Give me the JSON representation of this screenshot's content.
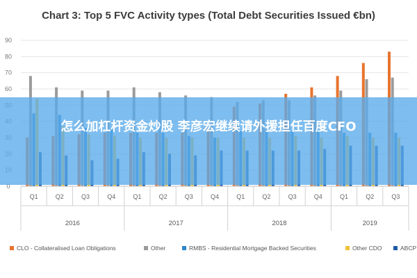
{
  "chart_data": {
    "type": "bar",
    "title": "Chart 3: Top 5 FVC Activity types (Total Debt Securities Issued €bn)",
    "xlabel": "",
    "ylabel": "",
    "ylim": [
      0,
      90
    ],
    "yticks": [
      0,
      10,
      20,
      30,
      40,
      50,
      60,
      70,
      80,
      90
    ],
    "grid": true,
    "legend_position": "bottom",
    "categories": [
      "Q1",
      "Q2",
      "Q3",
      "Q4",
      "Q1",
      "Q2",
      "Q3",
      "Q4",
      "Q1",
      "Q2",
      "Q3",
      "Q4",
      "Q1",
      "Q2",
      "Q3"
    ],
    "years": [
      {
        "label": "2016",
        "span": 4
      },
      {
        "label": "2017",
        "span": 4
      },
      {
        "label": "2018",
        "span": 4
      },
      {
        "label": "2019",
        "span": 3
      }
    ],
    "series": [
      {
        "name": "CLO - Collateralised Loan Obligations",
        "color": "#e8742e",
        "values": [
          30,
          31,
          32,
          33,
          33,
          33,
          33,
          36,
          49,
          51,
          57,
          61,
          68,
          76,
          83
        ]
      },
      {
        "name": "Other",
        "color": "#9b9b9b",
        "values": [
          68,
          61,
          59,
          59,
          61,
          58,
          56,
          55,
          52,
          53,
          53,
          56,
          59,
          66,
          67
        ]
      },
      {
        "name": "RMBS - Residential Mortgage Backed Securities",
        "color": "#2e86c8",
        "values": [
          45,
          44,
          36,
          35,
          33,
          33,
          31,
          30,
          34,
          35,
          34,
          35,
          33,
          33,
          33
        ]
      },
      {
        "name": "Other CDO",
        "color": "#f0c23a",
        "values": [
          54,
          37,
          32,
          31,
          30,
          30,
          30,
          30,
          30,
          30,
          31,
          30,
          31,
          30,
          30
        ]
      },
      {
        "name": "ABCP",
        "color": "#1f5aa8",
        "values": [
          21,
          19,
          16,
          17,
          21,
          20,
          19,
          22,
          22,
          22,
          22,
          23,
          25,
          25,
          25
        ]
      }
    ]
  },
  "overlay": {
    "text": "怎么加杠杆资金炒股 李彦宏继续请外援担任百度CFO"
  }
}
